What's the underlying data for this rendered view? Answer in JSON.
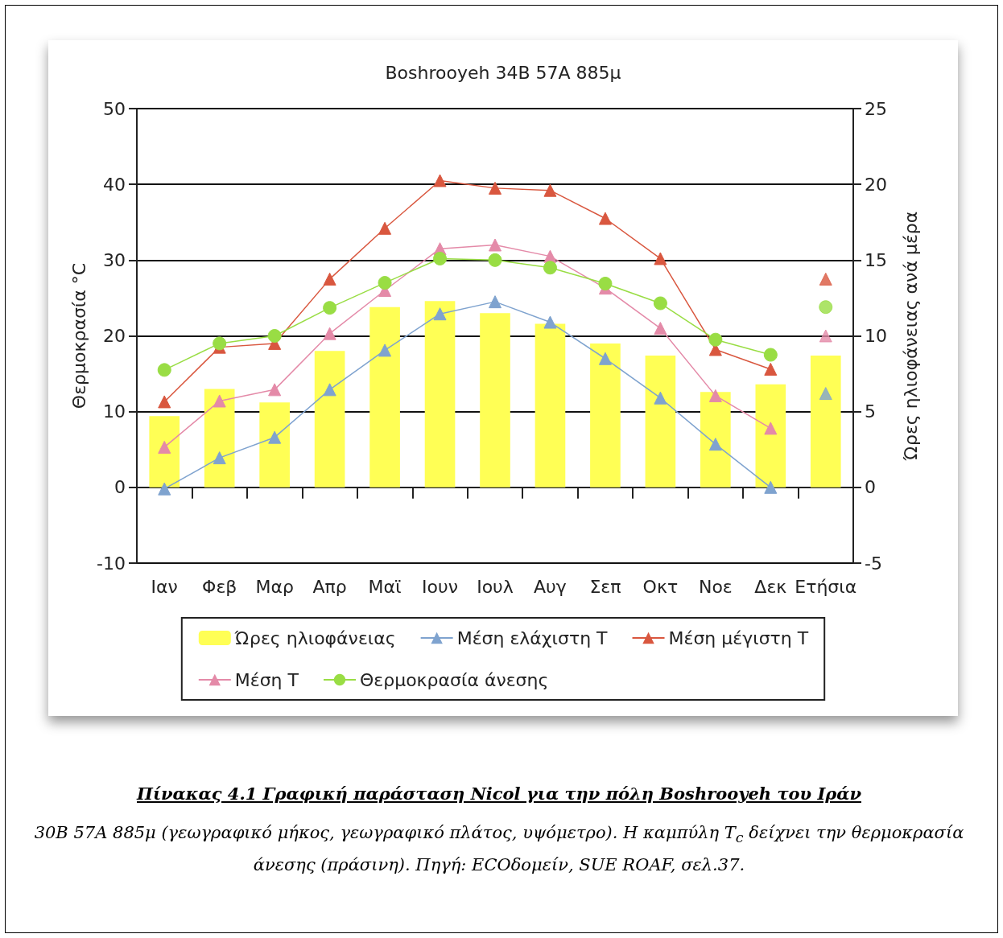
{
  "chart_data": {
    "type": "bar",
    "title": "Boshrooyeh 34Β 57Α 885μ",
    "ylabel": "Θερμοκρασία °C",
    "y2label": "Ώρες ηλιοφάνειας ανά μέρα",
    "categories": [
      "Ιαν",
      "Φεβ",
      "Μαρ",
      "Απρ",
      "Μαϊ",
      "Ιουν",
      "Ιουλ",
      "Αυγ",
      "Σεπ",
      "Οκτ",
      "Νοε",
      "Δεκ",
      "Ετήσια"
    ],
    "series": [
      {
        "name": "Ώρες ηλιοφάνειας",
        "axis": "y2",
        "color": "#ffff55",
        "values": [
          4.7,
          6.5,
          5.6,
          9,
          11.9,
          12.3,
          11.5,
          10.8,
          9.5,
          8.7,
          6.3,
          6.8,
          8.7
        ]
      },
      {
        "name": "Μέση ελάχιστη Τ",
        "type": "line",
        "marker": "triangle",
        "color": "#7fa3cf",
        "values": [
          -0.2,
          3.9,
          6.6,
          12.9,
          18.1,
          22.9,
          24.5,
          21.8,
          17,
          11.8,
          5.7,
          0,
          null
        ]
      },
      {
        "name": "Μέση μέγιστη Τ",
        "type": "line",
        "marker": "triangle",
        "color": "#d9573f",
        "values": [
          11.3,
          18.5,
          19,
          27.5,
          34.2,
          40.5,
          39.5,
          39.2,
          35.5,
          30.2,
          18.2,
          15.6,
          null
        ]
      },
      {
        "name": "Μέση Τ",
        "type": "line",
        "marker": "triangle",
        "color": "#e48aa8",
        "values": [
          5.3,
          11.4,
          12.9,
          20.3,
          26,
          31.5,
          32,
          30.5,
          26.3,
          21,
          12.1,
          7.8,
          null
        ]
      },
      {
        "name": "Θερμοκρασία άνεσης",
        "type": "line",
        "marker": "circle",
        "color": "#99dd44",
        "values": [
          15.5,
          19,
          20,
          23.7,
          27,
          30.2,
          30,
          29,
          26.9,
          24.3,
          19.5,
          17.5,
          null
        ]
      },
      {
        "type": "scatter",
        "marker": "triangle",
        "color": "#7fa3cf",
        "x": [
          "Ετήσια"
        ],
        "values": [
          12.4
        ]
      },
      {
        "type": "scatter",
        "marker": "triangle",
        "color": "#d9573f",
        "x": [
          "Ετήσια"
        ],
        "values": [
          27.5
        ]
      },
      {
        "type": "scatter",
        "marker": "triangle",
        "color": "#e48aa8",
        "x": [
          "Ετήσια"
        ],
        "values": [
          20
        ]
      },
      {
        "type": "scatter",
        "marker": "circle",
        "color": "#99dd44",
        "x": [
          "Ετήσια"
        ],
        "values": [
          23.8
        ]
      }
    ],
    "ylim": [
      -10,
      50
    ],
    "yticks": [
      -10,
      0,
      10,
      20,
      30,
      40,
      50
    ],
    "y2lim": [
      -5,
      25
    ],
    "y2ticks": [
      -5,
      0,
      5,
      10,
      15,
      20,
      25
    ],
    "grid": "y",
    "legend": "bottom",
    "annotations": [
      "Πίνακας 4.1 Γραφική παράσταση Nicol για την πόλη Boshrooyeh του Ιράν",
      "30Β 57Α 885μ (γεωγραφικό μήκος, γεωγραφικό πλάτος, υψόμετρο). Η καμπύλη T$_{c}$ δείχνει την θερμοκρασία άνεσης (πράσινη). Πηγή:  ECOδομείν, SUE ROAF, σελ.37."
    ]
  }
}
